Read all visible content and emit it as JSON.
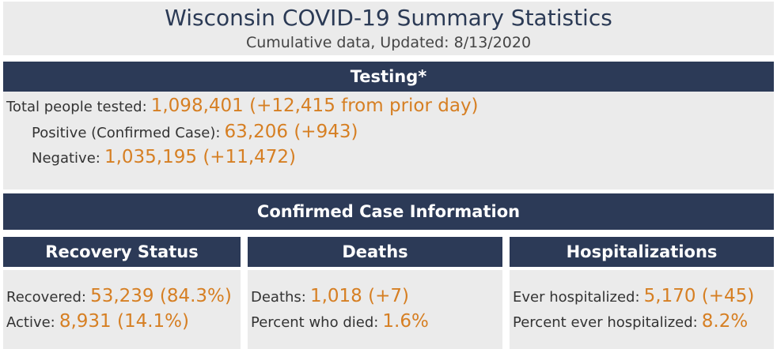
{
  "header": {
    "title": "Wisconsin COVID-19 Summary Statistics",
    "subtitle": "Cumulative data, Updated: 8/13/2020"
  },
  "testing": {
    "heading": "Testing*",
    "total": {
      "label": "Total people tested:",
      "value": "1,098,401 (+12,415 from prior day)"
    },
    "positive": {
      "label": "Positive (Confirmed Case):",
      "value": "63,206 (+943)"
    },
    "negative": {
      "label": "Negative:",
      "value": "1,035,195 (+11,472)"
    }
  },
  "confirmed_heading": "Confirmed Case Information",
  "recovery": {
    "heading": "Recovery Status",
    "recovered": {
      "label": "Recovered:",
      "value": "53,239 (84.3%)"
    },
    "active": {
      "label": "Active:",
      "value": "8,931 (14.1%)"
    }
  },
  "deaths": {
    "heading": "Deaths",
    "deaths": {
      "label": "Deaths:",
      "value": "1,018 (+7)"
    },
    "percent": {
      "label": "Percent who died:",
      "value": "1.6%"
    }
  },
  "hospitalizations": {
    "heading": "Hospitalizations",
    "ever": {
      "label": "Ever hospitalized:",
      "value": "5,170 (+45)"
    },
    "percent": {
      "label": "Percent ever hospitalized:",
      "value": "8.2%"
    }
  },
  "colors": {
    "header_bar": "#2c3a57",
    "panel_background": "#ebebeb",
    "value_orange": "#d67f23",
    "title_navy": "#2b3a55"
  }
}
